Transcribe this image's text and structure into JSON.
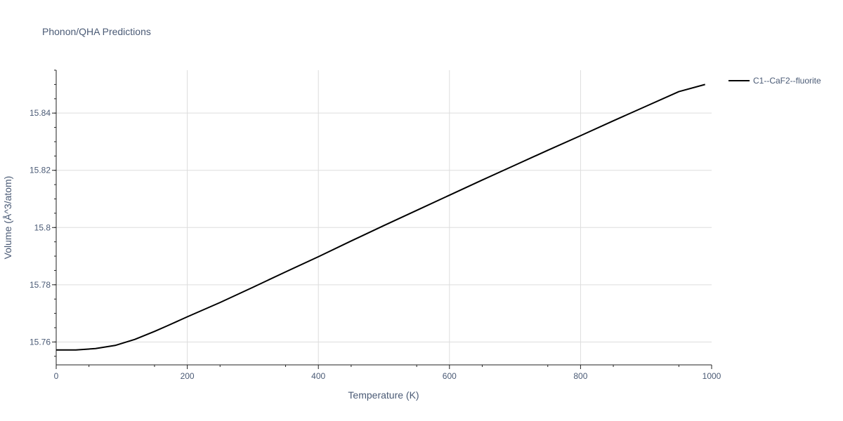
{
  "chart_data": {
    "type": "line",
    "title": "Phonon/QHA Predictions",
    "xlabel": "Temperature (K)",
    "ylabel": "Volume (Å^3/atom)",
    "xlim": [
      0,
      1000
    ],
    "ylim": [
      15.752,
      15.855
    ],
    "x_ticks": [
      0,
      200,
      400,
      600,
      800,
      1000
    ],
    "x_tick_labels": [
      "0",
      "200",
      "400",
      "600",
      "800",
      "1000"
    ],
    "y_ticks": [
      15.76,
      15.78,
      15.8,
      15.82,
      15.84
    ],
    "y_tick_labels": [
      "15.76",
      "15.78",
      "15.8",
      "15.82",
      "15.84"
    ],
    "grid": true,
    "legend_position": "top-right",
    "series": [
      {
        "name": "C1--CaF2--fluorite",
        "color": "#000000",
        "x": [
          0,
          30,
          60,
          90,
          120,
          150,
          170,
          200,
          250,
          300,
          350,
          400,
          450,
          500,
          550,
          600,
          650,
          700,
          750,
          800,
          850,
          900,
          950,
          990
        ],
        "y": [
          15.7572,
          15.7572,
          15.7577,
          15.7588,
          15.7609,
          15.7637,
          15.7657,
          15.7688,
          15.7738,
          15.7791,
          15.7845,
          15.7898,
          15.7953,
          15.8007,
          15.806,
          15.8113,
          15.8166,
          15.8218,
          15.827,
          15.8321,
          15.8373,
          15.8424,
          15.8475,
          15.85
        ]
      }
    ]
  }
}
